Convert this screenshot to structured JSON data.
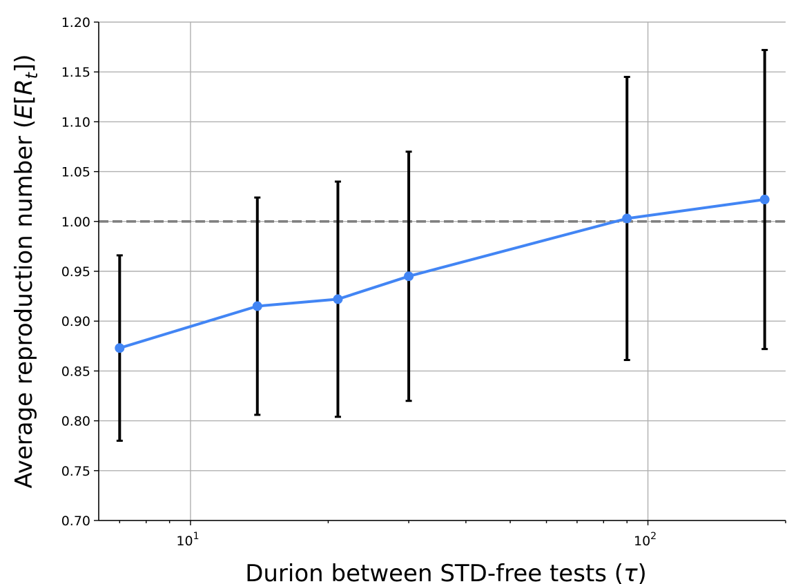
{
  "chart_data": {
    "type": "line",
    "x_scale": "log",
    "xlabel_parts": {
      "text": "Durion between STD-free tests (",
      "symbol": "τ",
      "close": ")"
    },
    "ylabel_parts": {
      "text": "Average reproduction number (",
      "E": "E",
      "bracket_open": "[",
      "R": "R",
      "sub": "t",
      "bracket_close": "])"
    },
    "xlim": [
      6.3,
      200
    ],
    "ylim": [
      0.7,
      1.2
    ],
    "y_ticks": [
      0.7,
      0.75,
      0.8,
      0.85,
      0.9,
      0.95,
      1.0,
      1.05,
      1.1,
      1.15,
      1.2
    ],
    "y_tick_labels": [
      "0.70",
      "0.75",
      "0.80",
      "0.85",
      "0.90",
      "0.95",
      "1.00",
      "1.05",
      "1.10",
      "1.15",
      "1.20"
    ],
    "x_major_ticks": [
      {
        "value": 10,
        "base": "10",
        "exp": "1"
      },
      {
        "value": 100,
        "base": "10",
        "exp": "2"
      }
    ],
    "x_minor_ticks": [
      7,
      8,
      9,
      20,
      30,
      40,
      50,
      60,
      70,
      80,
      90,
      200
    ],
    "grid": true,
    "reference_line": {
      "y": 1.0,
      "style": "dashed",
      "color": "#808080"
    },
    "series": [
      {
        "color": "#4285f4",
        "marker": "circle",
        "x": [
          7,
          14,
          21,
          30,
          90,
          180
        ],
        "y": [
          0.873,
          0.915,
          0.922,
          0.945,
          1.003,
          1.022
        ],
        "error_low": [
          0.78,
          0.806,
          0.804,
          0.82,
          0.861,
          0.872
        ],
        "error_high": [
          0.966,
          1.024,
          1.04,
          1.07,
          1.145,
          1.172
        ],
        "error_color": "#000000"
      }
    ]
  }
}
